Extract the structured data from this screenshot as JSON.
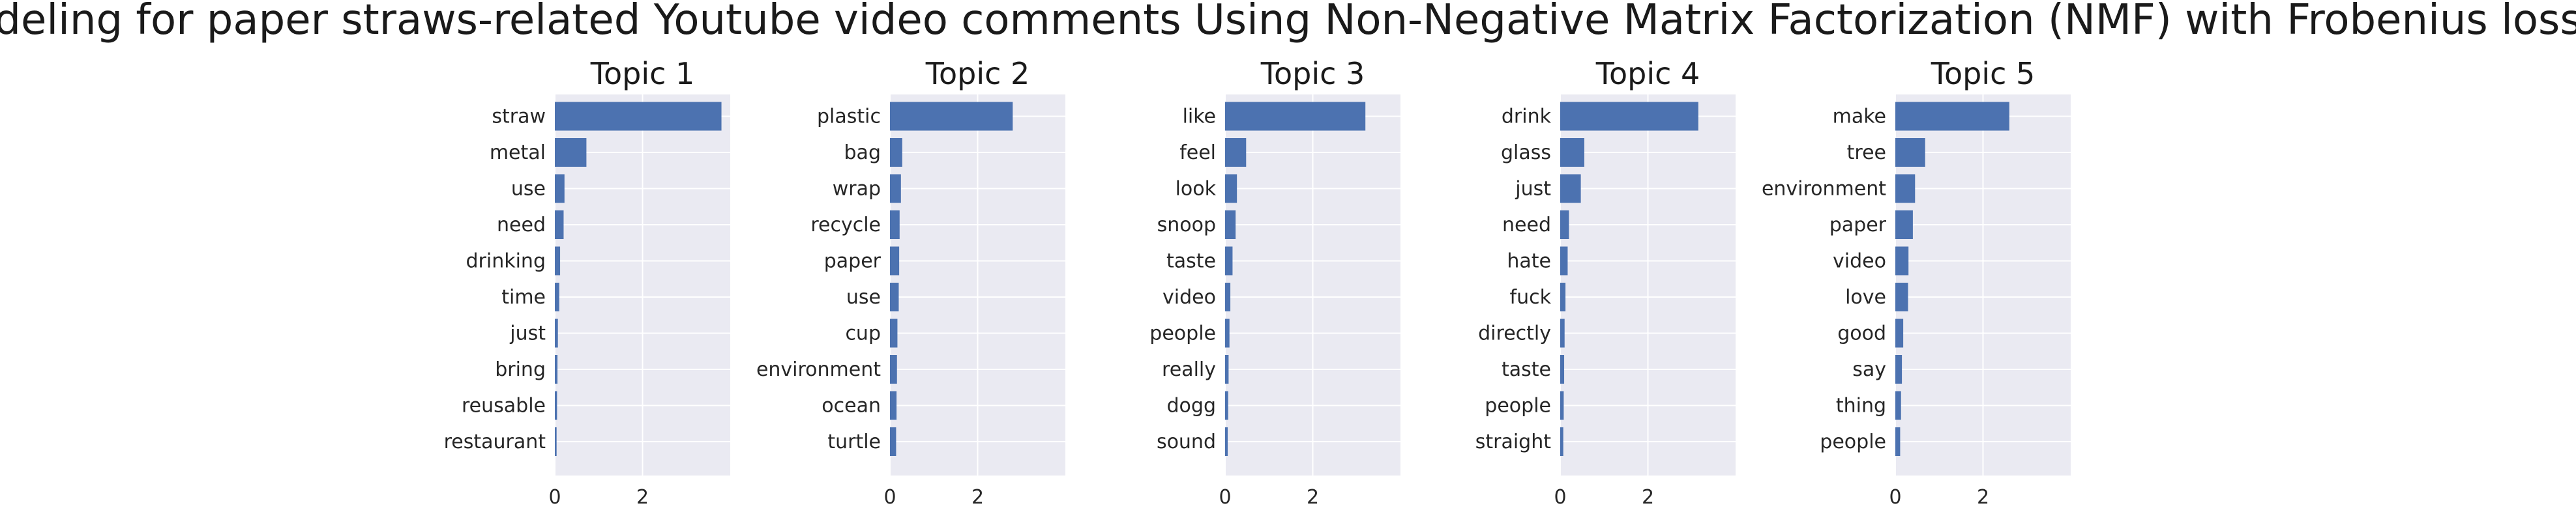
{
  "title": "Topic modeling for paper straws-related Youtube video comments Using Non-Negative Matrix Factorization (NMF) with Frobenius loss function",
  "colors": {
    "bar": "#4c72b0",
    "plot_background": "#eaeaf2",
    "grid": "#ffffff",
    "text": "#262626"
  },
  "chart_data": [
    {
      "type": "bar",
      "orientation": "horizontal",
      "title": "Topic 1",
      "categories": [
        "straw",
        "metal",
        "use",
        "need",
        "drinking",
        "time",
        "just",
        "bring",
        "reusable",
        "restaurant"
      ],
      "values": [
        3.8,
        0.72,
        0.22,
        0.2,
        0.12,
        0.1,
        0.07,
        0.06,
        0.05,
        0.04
      ],
      "xlim": [
        0,
        4
      ],
      "xticks": [
        0,
        2
      ],
      "xlabel": "",
      "ylabel": "",
      "grid": true,
      "inverted_y": true
    },
    {
      "type": "bar",
      "orientation": "horizontal",
      "title": "Topic 2",
      "categories": [
        "plastic",
        "bag",
        "wrap",
        "recycle",
        "paper",
        "use",
        "cup",
        "environment",
        "ocean",
        "turtle"
      ],
      "values": [
        2.8,
        0.28,
        0.25,
        0.22,
        0.21,
        0.2,
        0.17,
        0.16,
        0.15,
        0.14
      ],
      "xlim": [
        0,
        4
      ],
      "xticks": [
        0,
        2
      ],
      "xlabel": "",
      "ylabel": "",
      "grid": true,
      "inverted_y": true
    },
    {
      "type": "bar",
      "orientation": "horizontal",
      "title": "Topic 3",
      "categories": [
        "like",
        "feel",
        "look",
        "snoop",
        "taste",
        "video",
        "people",
        "really",
        "dogg",
        "sound"
      ],
      "values": [
        3.2,
        0.48,
        0.27,
        0.24,
        0.17,
        0.12,
        0.1,
        0.08,
        0.07,
        0.06
      ],
      "xlim": [
        0,
        4
      ],
      "xticks": [
        0,
        2
      ],
      "xlabel": "",
      "ylabel": "",
      "grid": true,
      "inverted_y": true
    },
    {
      "type": "bar",
      "orientation": "horizontal",
      "title": "Topic 4",
      "categories": [
        "drink",
        "glass",
        "just",
        "need",
        "hate",
        "fuck",
        "directly",
        "taste",
        "people",
        "straight"
      ],
      "values": [
        3.15,
        0.55,
        0.47,
        0.2,
        0.17,
        0.12,
        0.1,
        0.09,
        0.08,
        0.07
      ],
      "xlim": [
        0,
        4
      ],
      "xticks": [
        0,
        2
      ],
      "xlabel": "",
      "ylabel": "",
      "grid": true,
      "inverted_y": true
    },
    {
      "type": "bar",
      "orientation": "horizontal",
      "title": "Topic 5",
      "categories": [
        "make",
        "tree",
        "environment",
        "paper",
        "video",
        "love",
        "good",
        "say",
        "thing",
        "people"
      ],
      "values": [
        2.6,
        0.68,
        0.45,
        0.4,
        0.3,
        0.29,
        0.18,
        0.15,
        0.13,
        0.11
      ],
      "xlim": [
        0,
        4
      ],
      "xticks": [
        0,
        2
      ],
      "xlabel": "",
      "ylabel": "",
      "grid": true,
      "inverted_y": true
    }
  ]
}
